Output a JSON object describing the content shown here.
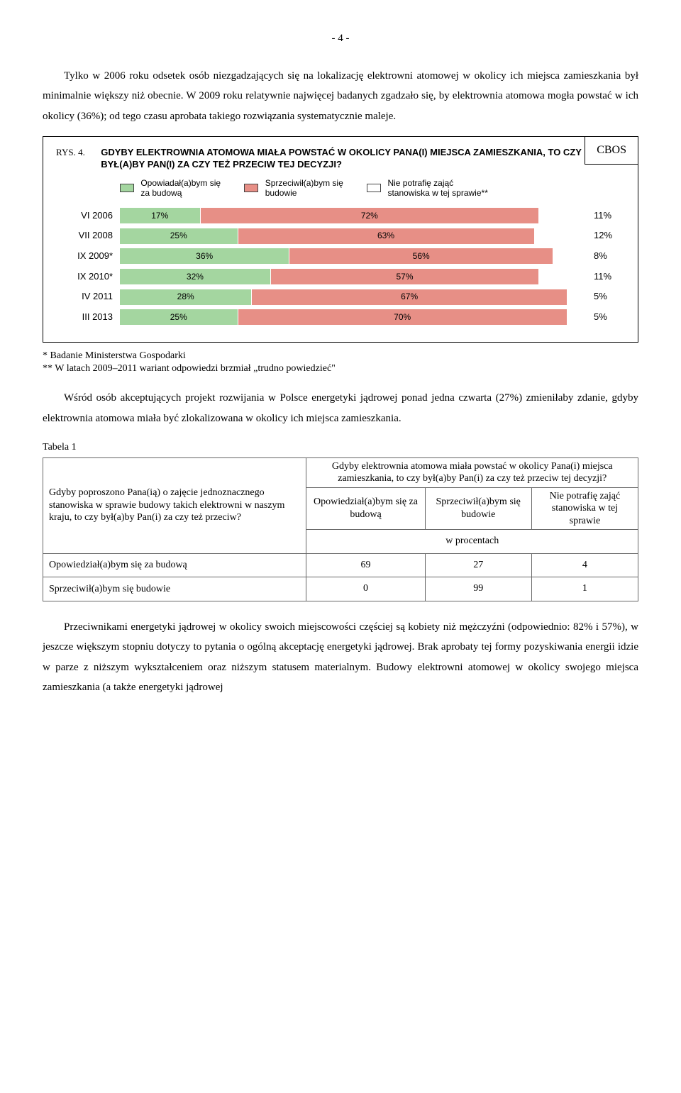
{
  "page_number": "- 4 -",
  "para1": "Tylko w 2006 roku odsetek osób niezgadzających się na lokalizację elektrowni atomowej w okolicy ich miejsca zamieszkania był minimalnie większy niż obecnie. W 2009 roku relatywnie najwięcej badanych zgadzało się, by elektrownia atomowa mogła powstać w ich okolicy (36%); od tego czasu aprobata takiego rozwiązania systematycznie maleje.",
  "cbos": "CBOS",
  "rys_label": "RYS. 4.",
  "rys_title": "GDYBY ELEKTROWNIA ATOMOWA MIAŁA POWSTAĆ W OKOLICY PANA(I) MIEJSCA ZAMIESZKANIA, TO CZY BYŁ(A)BY PAN(I) ZA CZY TEŻ PRZECIW TEJ DECYZJI?",
  "legend": [
    {
      "label": "Opowiadał(a)bym się\nza budową",
      "color": "#a4d6a0"
    },
    {
      "label": "Sprzeciwił(a)bym się\nbudowie",
      "color": "#e78f86"
    },
    {
      "label": "Nie potrafię zająć\nstanowiska w tej sprawie**",
      "color": "#ffffff"
    }
  ],
  "chart": {
    "categories": [
      "VI 2006",
      "VII 2008",
      "IX 2009*",
      "IX 2010*",
      "IV 2011",
      "III 2013"
    ],
    "series": [
      {
        "color": "#a4d6a0",
        "values": [
          17,
          25,
          36,
          32,
          28,
          25
        ]
      },
      {
        "color": "#e78f86",
        "values": [
          72,
          63,
          56,
          57,
          67,
          70
        ]
      }
    ],
    "end_labels": [
      "11%",
      "12%",
      "8%",
      "11%",
      "5%",
      "5%"
    ]
  },
  "footnote1": "* Badanie Ministerstwa Gospodarki",
  "footnote2": "** W latach 2009–2011 wariant odpowiedzi brzmiał „trudno powiedzieć\"",
  "para2": "Wśród osób akceptujących projekt rozwijania w Polsce energetyki jądrowej ponad jedna czwarta (27%) zmieniłaby zdanie, gdyby elektrownia atomowa miała być zlokalizowana w okolicy ich miejsca zamieszkania.",
  "tabela_label": "Tabela 1",
  "table": {
    "row_head": "Gdyby poproszono Pana(ią) o zajęcie jednoznacznego stanowiska w sprawie budowy takich elektrowni w naszym kraju, to czy był(a)by Pan(i) za czy też przeciw?",
    "col_top": "Gdyby elektrownia atomowa miała powstać w okolicy Pana(i) miejsca zamieszkania, to czy był(a)by Pan(i) za czy też przeciw tej decyzji?",
    "cols": [
      "Opowiedział(a)bym się za budową",
      "Sprzeciwił(a)bym się budowie",
      "Nie potrafię zająć stanowiska w tej sprawie"
    ],
    "unit_row": "w procentach",
    "rows": [
      {
        "label": "Opowiedział(a)bym się za budową",
        "vals": [
          "69",
          "27",
          "4"
        ]
      },
      {
        "label": "Sprzeciwił(a)bym się budowie",
        "vals": [
          "0",
          "99",
          "1"
        ]
      }
    ]
  },
  "para3": "Przeciwnikami energetyki jądrowej w okolicy swoich miejscowości częściej są kobiety niż mężczyźni (odpowiednio: 82% i 57%), w jeszcze większym stopniu dotyczy to pytania o ogólną akceptację energetyki jądrowej. Brak aprobaty tej formy pozyskiwania energii idzie w parze z niższym wykształceniem oraz niższym statusem materialnym. Budowy elektrowni atomowej w okolicy swojego miejsca zamieszkania (a także energetyki jądrowej"
}
